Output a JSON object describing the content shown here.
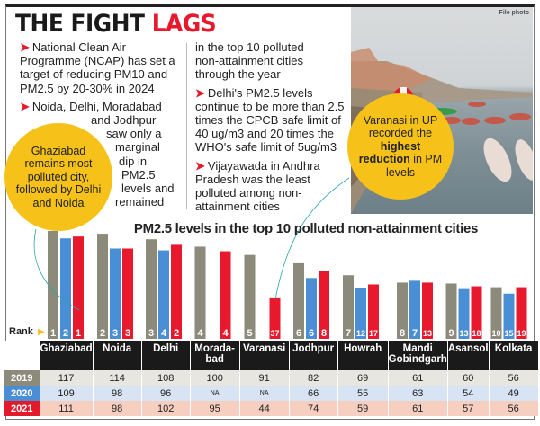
{
  "title": {
    "part1": "THE FIGHT",
    "part2": "LAGS"
  },
  "photo": {
    "credit": "File photo"
  },
  "bullets_left": [
    {
      "lines": [
        "National Clean Air",
        "Programme (NCAP) has set a",
        "target of reducing PM10 and",
        "PM2.5 by 20-30% in 2024"
      ]
    },
    {
      "lines": [
        "Noida, Delhi, Moradabad",
        "and Jodhpur",
        "saw only a",
        "marginal",
        "dip in",
        "PM2.5",
        "levels and",
        "remained"
      ]
    }
  ],
  "bullets_right": [
    {
      "continuation": true,
      "lines": [
        "in the top 10 polluted",
        "non-attainment cities",
        "through the year"
      ]
    },
    {
      "lines": [
        "Delhi's PM2.5 levels",
        "continue to be more than 2.5",
        "times the CPCB safe limit of",
        "40 ug/m3 and 20 times the",
        "WHO's safe limit of 5ug/m3"
      ]
    },
    {
      "lines": [
        "Vijayawada in Andhra",
        "Pradesh was the least",
        "polluted among non-",
        "attainment cities"
      ]
    }
  ],
  "callouts": {
    "ghaziabad": "Ghaziabad remains most polluted city, followed by Delhi and Noida",
    "varanasi": {
      "pre": "Varanasi in UP recorded the ",
      "bold1": "highest",
      "bold2": "reduction",
      "post": " in PM levels"
    }
  },
  "colors": {
    "2019": "#8c8a7a",
    "2020": "#4a8fd6",
    "2021": "#e8192c",
    "callout": "#f6c21a"
  },
  "chart_data": {
    "type": "bar",
    "title": "PM2.5 levels in the top 10 polluted non-attainment cities",
    "rank_label": "Rank",
    "categories": [
      "Ghaziabad",
      "Noida",
      "Delhi",
      "Morada-bad",
      "Varanasi",
      "Jodhpur",
      "Howrah",
      "Mandi Gobindgarh",
      "Asansol",
      "Kolkata"
    ],
    "series": [
      {
        "name": "2019",
        "values": [
          117,
          114,
          108,
          100,
          91,
          82,
          69,
          61,
          60,
          56
        ],
        "ranks": [
          "1",
          "2",
          "3",
          "4",
          "5",
          "6",
          "7",
          "8",
          "9",
          "10"
        ]
      },
      {
        "name": "2020",
        "values": [
          109,
          98,
          96,
          "NA",
          "NA",
          66,
          55,
          63,
          54,
          49
        ],
        "ranks": [
          "2",
          "3",
          "4",
          "",
          "",
          "6",
          "12",
          "7",
          "13",
          "15"
        ]
      },
      {
        "name": "2021",
        "values": [
          111,
          98,
          102,
          95,
          44,
          74,
          59,
          61,
          57,
          56
        ],
        "ranks": [
          "1",
          "3",
          "2",
          "4",
          "37",
          "8",
          "17",
          "13",
          "18",
          "19"
        ]
      }
    ],
    "ylim": [
      0,
      117
    ],
    "grid": false
  }
}
